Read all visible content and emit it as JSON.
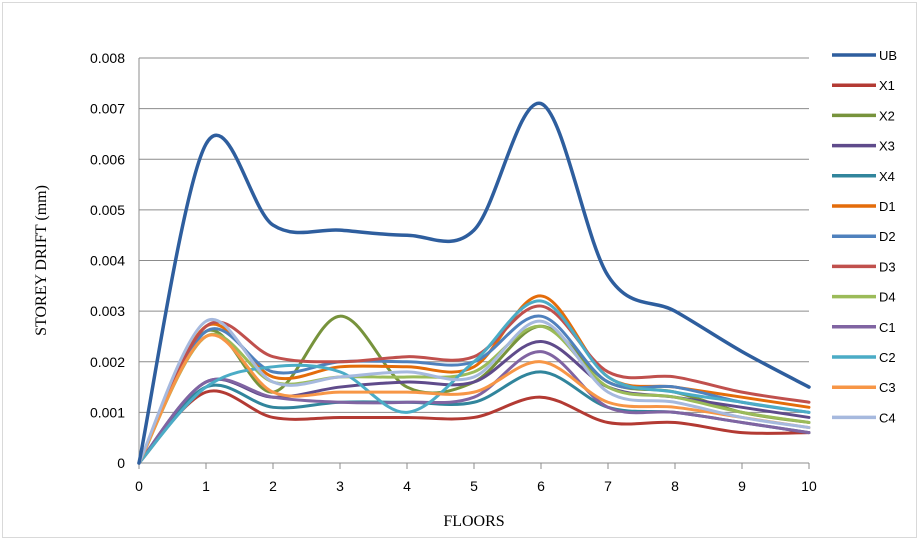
{
  "chart_data": {
    "type": "line",
    "title": "",
    "xlabel": "FLOORS",
    "ylabel": "STOREY DRIFT (mm)",
    "x": [
      0,
      1,
      2,
      3,
      4,
      5,
      6,
      7,
      8,
      9,
      10
    ],
    "xlim": [
      0,
      10
    ],
    "ylim": [
      0,
      0.008
    ],
    "x_ticks": [
      "0",
      "1",
      "2",
      "3",
      "4",
      "5",
      "6",
      "7",
      "8",
      "9",
      "10"
    ],
    "y_ticks": [
      "0",
      "0.001",
      "0.002",
      "0.003",
      "0.004",
      "0.005",
      "0.006",
      "0.007",
      "0.008"
    ],
    "grid": "horizontal",
    "legend_position": "right",
    "series": [
      {
        "name": "UB",
        "color": "#2E5E9E",
        "values": [
          0,
          0.0063,
          0.0047,
          0.0046,
          0.0045,
          0.0046,
          0.0071,
          0.0037,
          0.003,
          0.0022,
          0.0015
        ]
      },
      {
        "name": "X1",
        "color": "#B33A33",
        "values": [
          0,
          0.0014,
          0.0009,
          0.0009,
          0.0009,
          0.0009,
          0.0013,
          0.0008,
          0.0008,
          0.0006,
          0.0006
        ]
      },
      {
        "name": "X2",
        "color": "#77933C",
        "values": [
          0,
          0.0026,
          0.0014,
          0.0029,
          0.0015,
          0.0016,
          0.0027,
          0.0016,
          0.0014,
          0.001,
          0.0008
        ]
      },
      {
        "name": "X3",
        "color": "#5F4B8B",
        "values": [
          0,
          0.0016,
          0.0013,
          0.0015,
          0.0016,
          0.0016,
          0.0024,
          0.0015,
          0.0013,
          0.0011,
          0.0009
        ]
      },
      {
        "name": "X4",
        "color": "#31859C",
        "values": [
          0,
          0.0015,
          0.0011,
          0.0012,
          0.0012,
          0.0012,
          0.0018,
          0.0011,
          0.001,
          0.0008,
          0.0006
        ]
      },
      {
        "name": "D1",
        "color": "#E46C0A",
        "values": [
          0,
          0.0027,
          0.0017,
          0.0019,
          0.0019,
          0.0019,
          0.0033,
          0.0017,
          0.0015,
          0.0013,
          0.0011
        ]
      },
      {
        "name": "D2",
        "color": "#4F81BD",
        "values": [
          0,
          0.0026,
          0.0018,
          0.002,
          0.002,
          0.002,
          0.0029,
          0.0016,
          0.0015,
          0.0012,
          0.001
        ]
      },
      {
        "name": "D3",
        "color": "#C0504D",
        "values": [
          0,
          0.0027,
          0.0021,
          0.002,
          0.0021,
          0.0021,
          0.0031,
          0.0018,
          0.0017,
          0.0014,
          0.0012
        ]
      },
      {
        "name": "D4",
        "color": "#9BBB59",
        "values": [
          0,
          0.0025,
          0.0016,
          0.0017,
          0.0017,
          0.0018,
          0.0027,
          0.0015,
          0.0013,
          0.001,
          0.0008
        ]
      },
      {
        "name": "C1",
        "color": "#8064A2",
        "values": [
          0,
          0.0016,
          0.0013,
          0.0012,
          0.0012,
          0.0013,
          0.0022,
          0.0011,
          0.001,
          0.0008,
          0.0006
        ]
      },
      {
        "name": "C2",
        "color": "#4BACC6",
        "values": [
          0,
          0.0015,
          0.0019,
          0.0018,
          0.001,
          0.002,
          0.0032,
          0.0017,
          0.0014,
          0.0012,
          0.001
        ]
      },
      {
        "name": "C3",
        "color": "#F79646",
        "values": [
          0,
          0.0025,
          0.0014,
          0.0014,
          0.0014,
          0.0014,
          0.002,
          0.0012,
          0.0011,
          0.0009,
          0.0007
        ]
      },
      {
        "name": "C4",
        "color": "#A6B9DE",
        "values": [
          0,
          0.0028,
          0.0016,
          0.0017,
          0.0018,
          0.0017,
          0.0028,
          0.0014,
          0.0012,
          0.0009,
          0.0007
        ]
      }
    ]
  }
}
